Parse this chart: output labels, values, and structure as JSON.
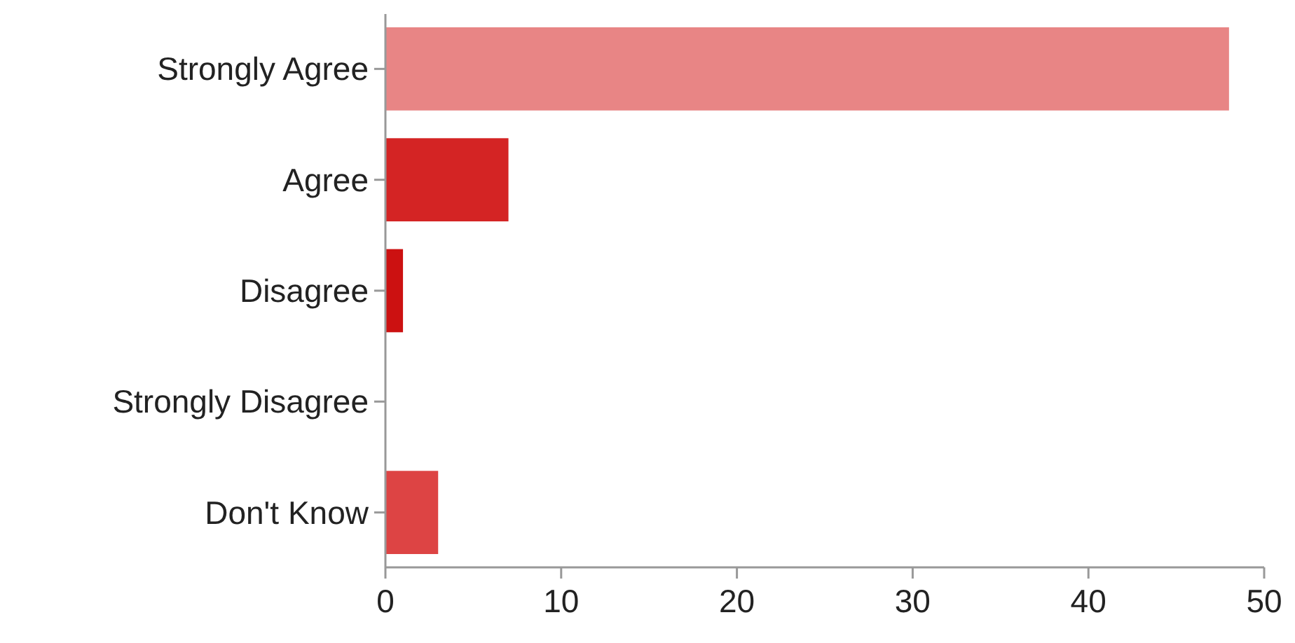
{
  "chart_data": {
    "type": "bar",
    "orientation": "horizontal",
    "categories": [
      "Strongly Agree",
      "Agree",
      "Disagree",
      "Strongly Disagree",
      "Don't Know"
    ],
    "values": [
      48,
      7,
      1,
      0,
      3
    ],
    "colors": [
      "#e88585",
      "#d42424",
      "#cc1111",
      "#c41010",
      "#dd4444"
    ],
    "xlim": [
      0,
      50
    ],
    "xticks": [
      0,
      10,
      20,
      30,
      40,
      50
    ]
  }
}
